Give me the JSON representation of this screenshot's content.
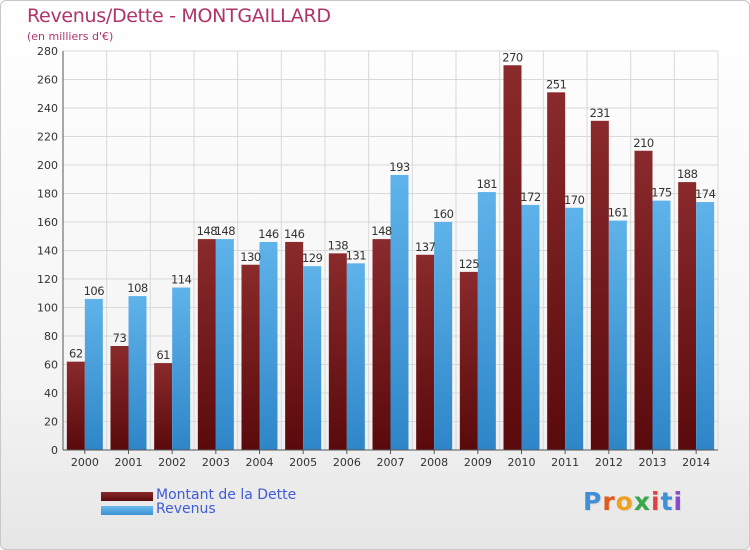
{
  "title": "Revenus/Dette - MONTGAILLARD",
  "subtitle": "(en milliers d'€)",
  "legend": [
    {
      "label": "Montant de la Dette"
    },
    {
      "label": "Revenus"
    }
  ],
  "logo": "Proxiti",
  "colors": {
    "dette": "#6e1214",
    "dette_light": "#8a2a2c",
    "revenus": "#4aa3e0",
    "revenus_light": "#6cb9ec",
    "title": "#b0336a",
    "legend_text": "#3f5bd6",
    "grid": "#d9d9d9",
    "axis_text": "#333333"
  },
  "chart_data": {
    "type": "bar",
    "categories": [
      "2000",
      "2001",
      "2002",
      "2003",
      "2004",
      "2005",
      "2006",
      "2007",
      "2008",
      "2009",
      "2010",
      "2011",
      "2012",
      "2013",
      "2014"
    ],
    "series": [
      {
        "name": "Montant de la Dette",
        "values": [
          62,
          73,
          61,
          148,
          130,
          146,
          138,
          148,
          137,
          125,
          270,
          251,
          231,
          210,
          188
        ]
      },
      {
        "name": "Revenus",
        "values": [
          106,
          108,
          114,
          148,
          146,
          129,
          131,
          193,
          160,
          181,
          172,
          170,
          161,
          175,
          174
        ]
      }
    ],
    "ylim": [
      0,
      280
    ],
    "yticks": [
      0,
      20,
      40,
      60,
      80,
      100,
      120,
      140,
      160,
      180,
      200,
      220,
      240,
      260,
      280
    ],
    "grid": true,
    "legend_position": "bottom-left"
  }
}
